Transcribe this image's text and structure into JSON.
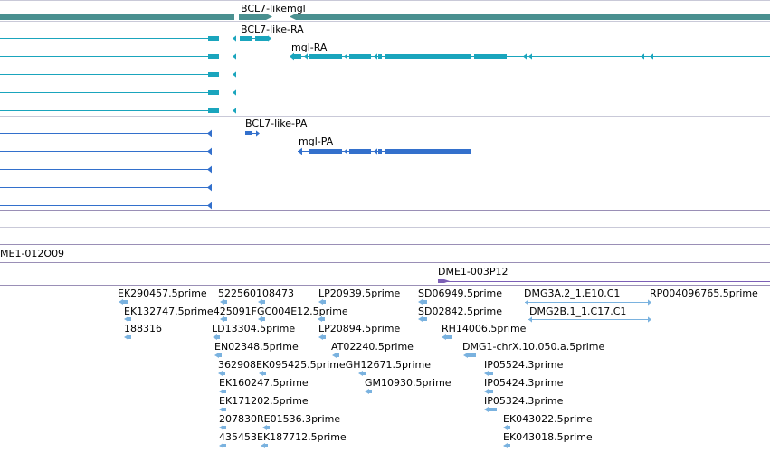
{
  "colors": {
    "gene": "#4a9090",
    "cdna_transcript": "#1aa5bd",
    "protein": "#3370cc",
    "clone_bar": "#7c5fb6",
    "est": "#7ab2df",
    "separator_dark": "#9a8fb6",
    "separator_light": "#c9c9d8"
  },
  "tracks": {
    "genes": {
      "labels": [
        {
          "name": "gene-label-bcl7-likemgl",
          "text": "BCL7-likemgl"
        }
      ]
    },
    "transcripts": {
      "labels": [
        {
          "name": "transcript-label-bcl7-like-ra",
          "text": "BCL7-like-RA"
        },
        {
          "name": "transcript-label-mgl-ra",
          "text": "mgl-RA"
        }
      ]
    },
    "proteins": {
      "labels": [
        {
          "name": "protein-label-bcl7-like-pa",
          "text": "BCL7-like-PA"
        },
        {
          "name": "protein-label-mgl-pa",
          "text": "mgl-PA"
        }
      ]
    },
    "clones": {
      "labels": [
        {
          "name": "clone-label-dme1-012o09",
          "text": "ME1-012O09"
        },
        {
          "name": "clone-label-dme1-003p12",
          "text": "DME1-003P12"
        }
      ]
    },
    "ests": {
      "labels": [
        {
          "text": "EK290457.5prime"
        },
        {
          "text": "522560108473"
        },
        {
          "text": "LP20939.5prime"
        },
        {
          "text": "SD06949.5prime"
        },
        {
          "text": "DMG3A.2_1.E10.C1"
        },
        {
          "text": "RP004096765.5prime"
        },
        {
          "text": "EK132747.5prime425091FGC004E12.5prime"
        },
        {
          "text": "SD02842.5prime"
        },
        {
          "text": "DMG2B.1_1.C17.C1"
        },
        {
          "text": "188316"
        },
        {
          "text": "LD13304.5prime"
        },
        {
          "text": "LP20894.5prime"
        },
        {
          "text": "RH14006.5prime"
        },
        {
          "text": "EN02348.5prime"
        },
        {
          "text": "AT02240.5prime"
        },
        {
          "text": "DMG1-chrX.10.050.a.5prime"
        },
        {
          "text": "362908EK095425.5primeGH12671.5prime"
        },
        {
          "text": "IP05524.3prime"
        },
        {
          "text": "EK160247.5prime"
        },
        {
          "text": "GM10930.5prime"
        },
        {
          "text": "IP05424.3prime"
        },
        {
          "text": "EK171202.5prime"
        },
        {
          "text": "IP05324.3prime"
        },
        {
          "text": "207830RE01536.3prime"
        },
        {
          "text": "EK043022.5prime"
        },
        {
          "text": "435453EK187712.5prime"
        },
        {
          "text": "EK043018.5prime"
        }
      ]
    }
  }
}
